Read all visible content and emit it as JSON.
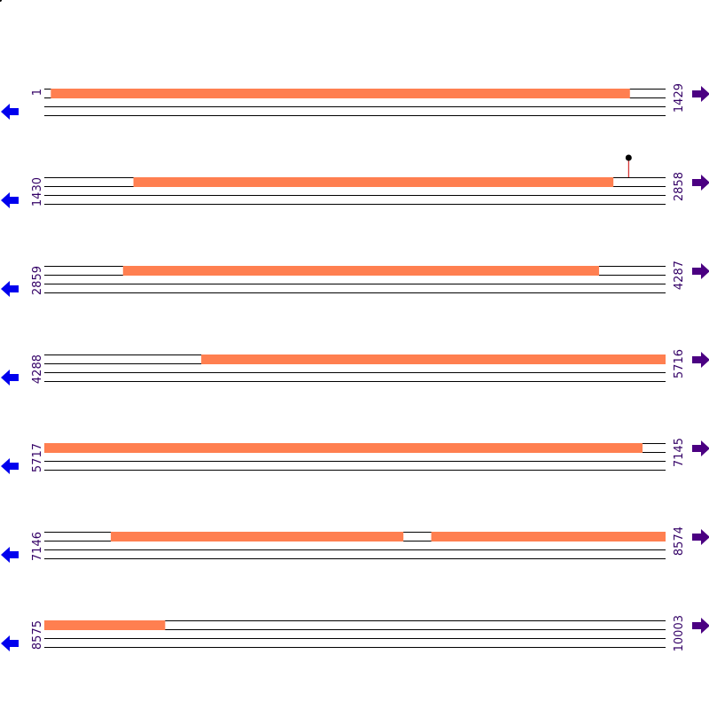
{
  "sequence": {
    "total_length": 10003,
    "bases_per_row": 1429,
    "rows": [
      {
        "start": "1",
        "end": "1429",
        "start_pos": 1,
        "end_pos": 1429
      },
      {
        "start": "1430",
        "end": "2858",
        "start_pos": 1430,
        "end_pos": 2858
      },
      {
        "start": "2859",
        "end": "4287",
        "start_pos": 2859,
        "end_pos": 4287
      },
      {
        "start": "4288",
        "end": "5716",
        "start_pos": 4288,
        "end_pos": 5716
      },
      {
        "start": "5717",
        "end": "7145",
        "start_pos": 5717,
        "end_pos": 7145
      },
      {
        "start": "7146",
        "end": "8574",
        "start_pos": 7146,
        "end_pos": 8574
      },
      {
        "start": "8575",
        "end": "10003",
        "start_pos": 8575,
        "end_pos": 10003
      }
    ]
  },
  "orfs": [
    {
      "frame": 1,
      "start": 16,
      "end": 1348
    },
    {
      "frame": 1,
      "start": 1635,
      "end": 2739
    },
    {
      "frame": 1,
      "start": 3040,
      "end": 4135
    },
    {
      "frame": 1,
      "start": 4649,
      "end": 7093
    },
    {
      "frame": 1,
      "start": 7299,
      "end": 7972
    },
    {
      "frame": 1,
      "start": 8036,
      "end": 8853
    }
  ],
  "markers": [
    {
      "position": 2774,
      "frame": 1,
      "color": "#000000"
    }
  ],
  "colors": {
    "orf": "#ff7f50",
    "track": "#000000",
    "marker_stem": "#cc0000",
    "marker_head": "#000000",
    "reverse_arrow": "#0000ee",
    "forward_arrow": "#4b0082",
    "label": "#330066"
  },
  "icons": {
    "reverse": "arrow-left-icon",
    "forward": "arrow-right-icon"
  }
}
